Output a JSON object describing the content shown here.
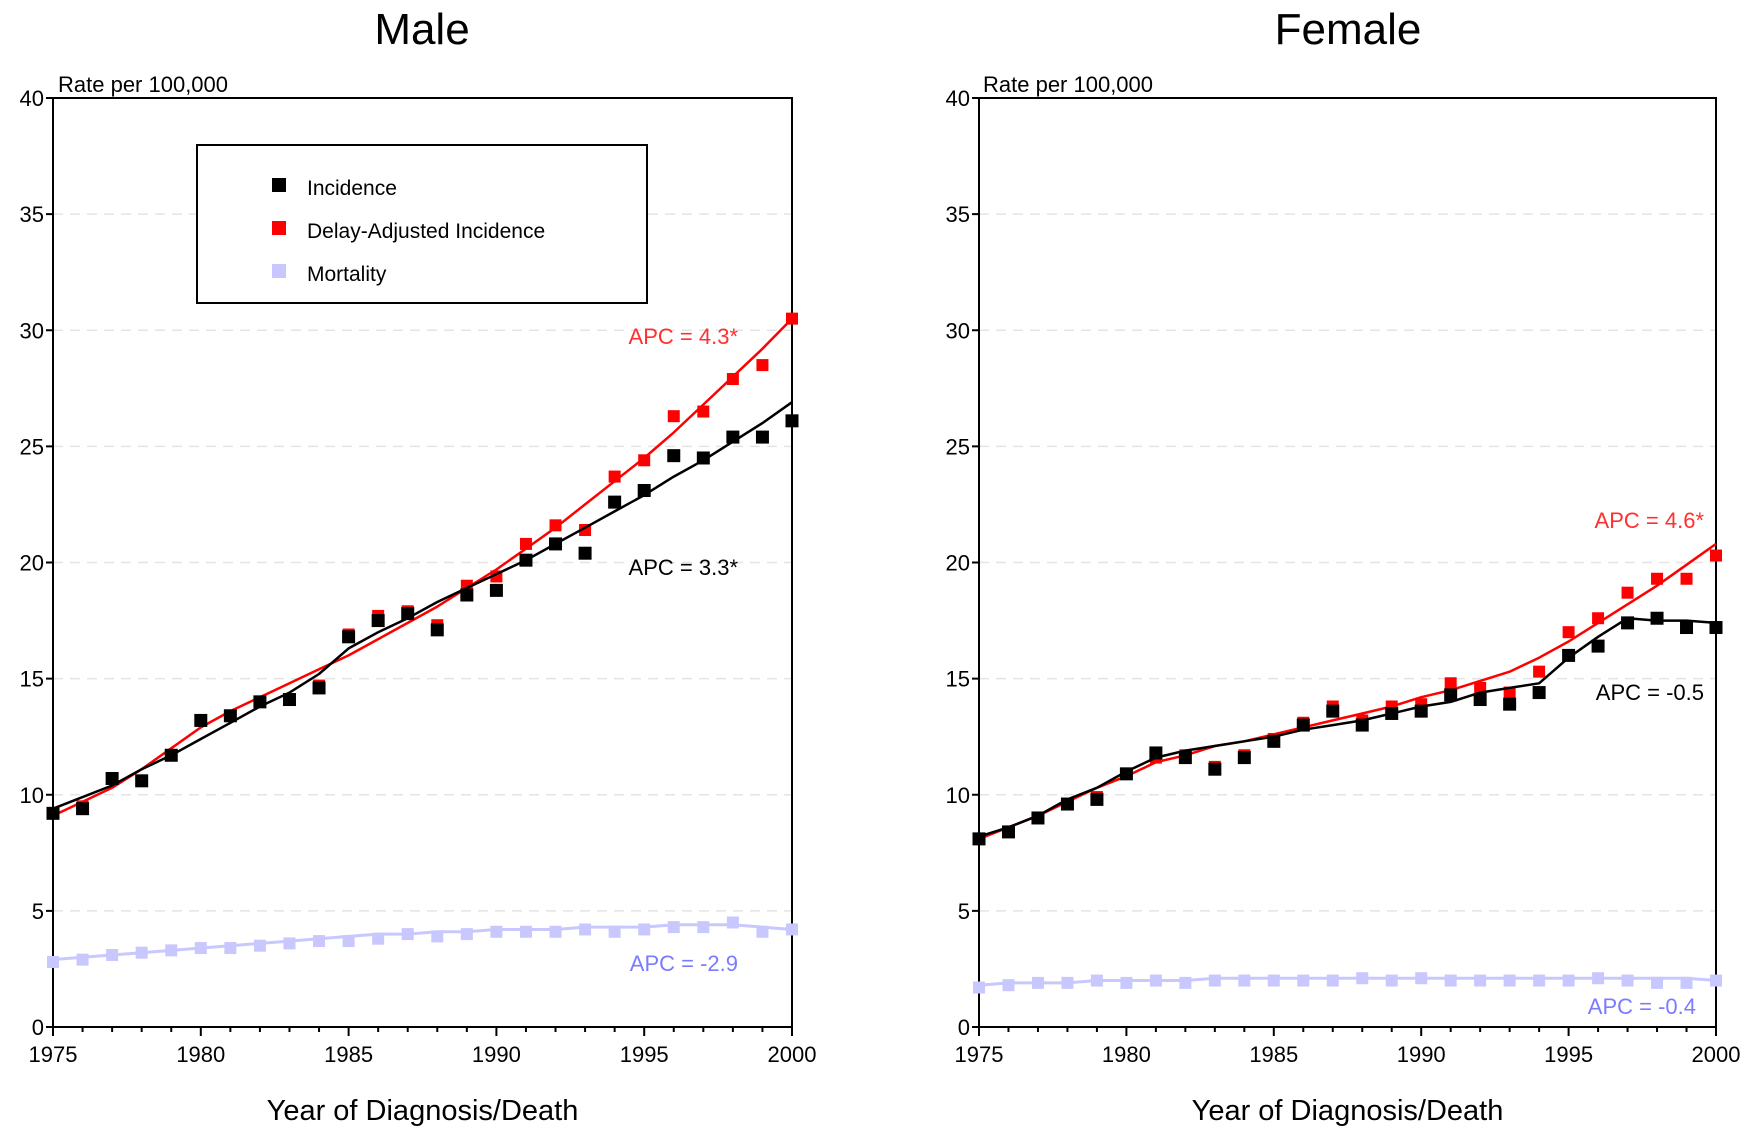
{
  "chart_data": [
    {
      "type": "scatter",
      "title": "Male",
      "xlabel": "Year of Diagnosis/Death",
      "ylabel": "Rate per 100,000",
      "xlim": [
        1975,
        2000
      ],
      "ylim": [
        0,
        40
      ],
      "x_ticks": [
        1975,
        1980,
        1985,
        1990,
        1995,
        2000
      ],
      "y_ticks": [
        0,
        5,
        10,
        15,
        20,
        25,
        30,
        35,
        40
      ],
      "grid": "horizontal dashed",
      "legend": {
        "placement": "top-left",
        "entries": [
          {
            "label": "Incidence",
            "color": "#000000"
          },
          {
            "label": "Delay-Adjusted Incidence",
            "color": "#ff0000"
          },
          {
            "label": "Mortality",
            "color": "#c8c8ff"
          }
        ]
      },
      "x": [
        1975,
        1976,
        1977,
        1978,
        1979,
        1980,
        1981,
        1982,
        1983,
        1984,
        1985,
        1986,
        1987,
        1988,
        1989,
        1990,
        1991,
        1992,
        1993,
        1994,
        1995,
        1996,
        1997,
        1998,
        1999,
        2000
      ],
      "series": [
        {
          "name": "Incidence",
          "color": "#000000",
          "values": [
            9.2,
            9.4,
            10.7,
            10.6,
            11.7,
            13.2,
            13.4,
            14.0,
            14.1,
            14.6,
            16.8,
            17.5,
            17.8,
            17.1,
            18.6,
            18.8,
            20.1,
            20.8,
            20.4,
            22.6,
            23.1,
            24.6,
            24.5,
            25.4,
            25.4,
            26.1
          ],
          "trend": [
            [
              1975,
              9.4
            ],
            [
              1976,
              9.9
            ],
            [
              1977,
              10.4
            ],
            [
              1978,
              11.1
            ],
            [
              1979,
              11.7
            ],
            [
              1980,
              12.4
            ],
            [
              1981,
              13.1
            ],
            [
              1982,
              13.8
            ],
            [
              1983,
              14.4
            ],
            [
              1984,
              15.2
            ],
            [
              1985,
              16.3
            ],
            [
              1986,
              17.0
            ],
            [
              1987,
              17.6
            ],
            [
              1988,
              18.3
            ],
            [
              1989,
              18.9
            ],
            [
              1990,
              19.5
            ],
            [
              1991,
              20.1
            ],
            [
              1992,
              20.8
            ],
            [
              1993,
              21.5
            ],
            [
              1994,
              22.2
            ],
            [
              1995,
              22.9
            ],
            [
              1996,
              23.7
            ],
            [
              1997,
              24.4
            ],
            [
              1998,
              25.2
            ],
            [
              1999,
              26.0
            ],
            [
              2000,
              26.9
            ]
          ],
          "apc": "APC = 3.3*",
          "apc_color": "#000000"
        },
        {
          "name": "Delay-Adjusted Incidence",
          "color": "#ff0000",
          "values": [
            9.2,
            9.5,
            10.7,
            10.6,
            11.7,
            13.2,
            13.4,
            14.0,
            14.1,
            14.7,
            16.9,
            17.7,
            17.9,
            17.3,
            19.0,
            19.4,
            20.8,
            21.6,
            21.4,
            23.7,
            24.4,
            26.3,
            26.5,
            27.9,
            28.5,
            30.5
          ],
          "trend": [
            [
              1975,
              9.1
            ],
            [
              1976,
              9.7
            ],
            [
              1977,
              10.3
            ],
            [
              1978,
              11.1
            ],
            [
              1979,
              12.0
            ],
            [
              1980,
              12.9
            ],
            [
              1981,
              13.6
            ],
            [
              1982,
              14.2
            ],
            [
              1983,
              14.8
            ],
            [
              1984,
              15.4
            ],
            [
              1985,
              16.0
            ],
            [
              1986,
              16.7
            ],
            [
              1987,
              17.4
            ],
            [
              1988,
              18.1
            ],
            [
              1989,
              18.9
            ],
            [
              1990,
              19.7
            ],
            [
              1991,
              20.6
            ],
            [
              1992,
              21.5
            ],
            [
              1993,
              22.5
            ],
            [
              1994,
              23.5
            ],
            [
              1995,
              24.5
            ],
            [
              1996,
              25.6
            ],
            [
              1997,
              26.8
            ],
            [
              1998,
              28.0
            ],
            [
              1999,
              29.2
            ],
            [
              2000,
              30.5
            ]
          ],
          "apc": "APC = 4.3*",
          "apc_color": "#ff3030"
        },
        {
          "name": "Mortality",
          "color": "#c8c8ff",
          "values": [
            2.8,
            2.9,
            3.1,
            3.2,
            3.3,
            3.4,
            3.4,
            3.5,
            3.6,
            3.7,
            3.7,
            3.8,
            4.0,
            3.9,
            4.0,
            4.1,
            4.1,
            4.1,
            4.2,
            4.1,
            4.2,
            4.3,
            4.3,
            4.5,
            4.1,
            4.2
          ],
          "trend": [
            [
              1975,
              2.9
            ],
            [
              1976,
              3.0
            ],
            [
              1977,
              3.1
            ],
            [
              1978,
              3.2
            ],
            [
              1979,
              3.3
            ],
            [
              1980,
              3.4
            ],
            [
              1981,
              3.5
            ],
            [
              1982,
              3.6
            ],
            [
              1983,
              3.7
            ],
            [
              1984,
              3.8
            ],
            [
              1985,
              3.9
            ],
            [
              1986,
              4.0
            ],
            [
              1987,
              4.0
            ],
            [
              1988,
              4.1
            ],
            [
              1989,
              4.1
            ],
            [
              1990,
              4.2
            ],
            [
              1991,
              4.2
            ],
            [
              1992,
              4.2
            ],
            [
              1993,
              4.3
            ],
            [
              1994,
              4.3
            ],
            [
              1995,
              4.3
            ],
            [
              1996,
              4.4
            ],
            [
              1997,
              4.4
            ],
            [
              1998,
              4.4
            ],
            [
              1999,
              4.3
            ],
            [
              2000,
              4.2
            ]
          ],
          "apc": "APC = -2.9",
          "apc_color": "#7b7bff"
        }
      ]
    },
    {
      "type": "scatter",
      "title": "Female",
      "xlabel": "Year of Diagnosis/Death",
      "ylabel": "Rate per 100,000",
      "xlim": [
        1975,
        2000
      ],
      "ylim": [
        0,
        40
      ],
      "x_ticks": [
        1975,
        1980,
        1985,
        1990,
        1995,
        2000
      ],
      "y_ticks": [
        0,
        5,
        10,
        15,
        20,
        25,
        30,
        35,
        40
      ],
      "grid": "horizontal dashed",
      "x": [
        1975,
        1976,
        1977,
        1978,
        1979,
        1980,
        1981,
        1982,
        1983,
        1984,
        1985,
        1986,
        1987,
        1988,
        1989,
        1990,
        1991,
        1992,
        1993,
        1994,
        1995,
        1996,
        1997,
        1998,
        1999,
        2000
      ],
      "series": [
        {
          "name": "Incidence",
          "color": "#000000",
          "values": [
            8.1,
            8.4,
            9.0,
            9.6,
            9.8,
            10.9,
            11.8,
            11.6,
            11.1,
            11.6,
            12.3,
            13.0,
            13.6,
            13.0,
            13.5,
            13.6,
            14.3,
            14.1,
            13.9,
            14.4,
            16.0,
            16.4,
            17.4,
            17.6,
            17.2,
            17.2
          ],
          "trend": [
            [
              1975,
              8.2
            ],
            [
              1976,
              8.6
            ],
            [
              1977,
              9.1
            ],
            [
              1978,
              9.8
            ],
            [
              1979,
              10.3
            ],
            [
              1980,
              11.0
            ],
            [
              1981,
              11.6
            ],
            [
              1982,
              11.9
            ],
            [
              1983,
              12.1
            ],
            [
              1984,
              12.3
            ],
            [
              1985,
              12.5
            ],
            [
              1986,
              12.8
            ],
            [
              1987,
              13.0
            ],
            [
              1988,
              13.2
            ],
            [
              1989,
              13.5
            ],
            [
              1990,
              13.8
            ],
            [
              1991,
              14.0
            ],
            [
              1992,
              14.4
            ],
            [
              1993,
              14.6
            ],
            [
              1994,
              14.8
            ],
            [
              1995,
              15.9
            ],
            [
              1996,
              16.8
            ],
            [
              1997,
              17.6
            ],
            [
              1998,
              17.5
            ],
            [
              1999,
              17.5
            ],
            [
              2000,
              17.4
            ]
          ],
          "apc": "APC = -0.5",
          "apc_color": "#000000"
        },
        {
          "name": "Delay-Adjusted Incidence",
          "color": "#ff0000",
          "values": [
            8.1,
            8.4,
            9.0,
            9.6,
            9.9,
            10.9,
            11.6,
            11.7,
            11.2,
            11.7,
            12.4,
            13.1,
            13.8,
            13.2,
            13.8,
            13.9,
            14.8,
            14.6,
            14.4,
            15.3,
            17.0,
            17.6,
            18.7,
            19.3,
            19.3,
            20.3
          ],
          "trend": [
            [
              1975,
              8.1
            ],
            [
              1976,
              8.6
            ],
            [
              1977,
              9.1
            ],
            [
              1978,
              9.7
            ],
            [
              1979,
              10.3
            ],
            [
              1980,
              10.8
            ],
            [
              1981,
              11.4
            ],
            [
              1982,
              11.7
            ],
            [
              1983,
              12.1
            ],
            [
              1984,
              12.3
            ],
            [
              1985,
              12.6
            ],
            [
              1986,
              12.9
            ],
            [
              1987,
              13.2
            ],
            [
              1988,
              13.5
            ],
            [
              1989,
              13.8
            ],
            [
              1990,
              14.2
            ],
            [
              1991,
              14.5
            ],
            [
              1992,
              14.9
            ],
            [
              1993,
              15.3
            ],
            [
              1994,
              15.9
            ],
            [
              1995,
              16.6
            ],
            [
              1996,
              17.4
            ],
            [
              1997,
              18.2
            ],
            [
              1998,
              19.0
            ],
            [
              1999,
              19.9
            ],
            [
              2000,
              20.8
            ]
          ],
          "apc": "APC = 4.6*",
          "apc_color": "#ff3030"
        },
        {
          "name": "Mortality",
          "color": "#c8c8ff",
          "values": [
            1.7,
            1.8,
            1.9,
            1.9,
            2.0,
            1.9,
            2.0,
            1.9,
            2.0,
            2.0,
            2.0,
            2.0,
            2.0,
            2.1,
            2.0,
            2.1,
            2.0,
            2.0,
            2.0,
            2.0,
            2.0,
            2.1,
            2.0,
            1.9,
            1.9,
            2.0
          ],
          "trend": [
            [
              1975,
              1.8
            ],
            [
              1976,
              1.9
            ],
            [
              1977,
              1.9
            ],
            [
              1978,
              1.9
            ],
            [
              1979,
              2.0
            ],
            [
              1980,
              2.0
            ],
            [
              1981,
              2.0
            ],
            [
              1982,
              2.0
            ],
            [
              1983,
              2.1
            ],
            [
              1984,
              2.1
            ],
            [
              1985,
              2.1
            ],
            [
              1986,
              2.1
            ],
            [
              1987,
              2.1
            ],
            [
              1988,
              2.1
            ],
            [
              1989,
              2.1
            ],
            [
              1990,
              2.1
            ],
            [
              1991,
              2.1
            ],
            [
              1992,
              2.1
            ],
            [
              1993,
              2.1
            ],
            [
              1994,
              2.1
            ],
            [
              1995,
              2.1
            ],
            [
              1996,
              2.1
            ],
            [
              1997,
              2.1
            ],
            [
              1998,
              2.1
            ],
            [
              1999,
              2.1
            ],
            [
              2000,
              2.0
            ]
          ],
          "apc": "APC = -0.4",
          "apc_color": "#7b7bff"
        }
      ]
    }
  ]
}
